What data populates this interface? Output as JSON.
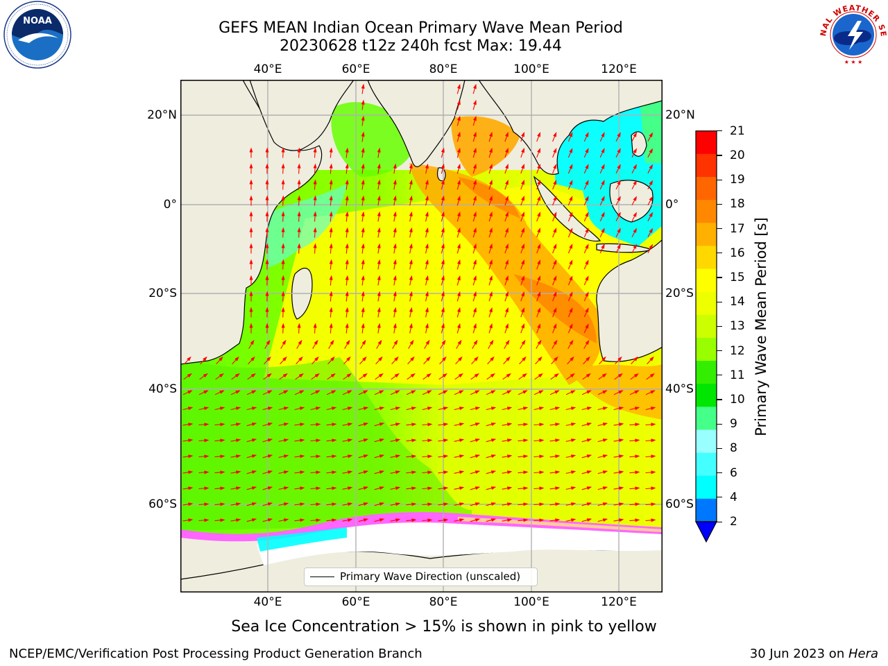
{
  "header": {
    "title_line1": "GEFS MEAN Indian Ocean Primary Wave Mean Period",
    "title_line2": "20230628 t12z 240h fcst   Max: 19.44"
  },
  "logos": {
    "left": "noaa-logo",
    "right": "national-weather-service-logo",
    "right_text": "NATIONAL WEATHER SERVICE"
  },
  "map": {
    "lon_ticks": [
      "40°E",
      "60°E",
      "80°E",
      "100°E",
      "120°E"
    ],
    "lat_ticks": [
      "20°N",
      "0°",
      "20°S",
      "40°S",
      "60°S"
    ],
    "land_color": "#efedde",
    "arrow_color": "#ff0000",
    "ice_colors": [
      "#ff66ff",
      "#ff99cc",
      "#ffcc99"
    ]
  },
  "legend": {
    "label": "Primary Wave Direction (unscaled)"
  },
  "colorbar": {
    "label": "Primary Wave Mean Period [s]",
    "ticks": [
      "21",
      "20",
      "19",
      "18",
      "17",
      "16",
      "15",
      "14",
      "13",
      "12",
      "11",
      "10",
      "9",
      "8",
      "6",
      "4",
      "2"
    ],
    "colors": [
      "#ff0000",
      "#ff3300",
      "#ff6600",
      "#ff8800",
      "#ffb000",
      "#ffd800",
      "#ffff00",
      "#eeff00",
      "#ccff00",
      "#99ff00",
      "#33ee00",
      "#00e600",
      "#44ff88",
      "#99ffff",
      "#44ffff",
      "#00ffff",
      "#0077ff"
    ],
    "under_color": "#0000ff"
  },
  "footer": {
    "note": "Sea Ice Concentration > 15% is shown in pink to yellow",
    "left": "NCEP/EMC/Verification Post Processing Product Generation Branch",
    "right_prefix": "30 Jun 2023 on ",
    "right_host": "Hera"
  }
}
